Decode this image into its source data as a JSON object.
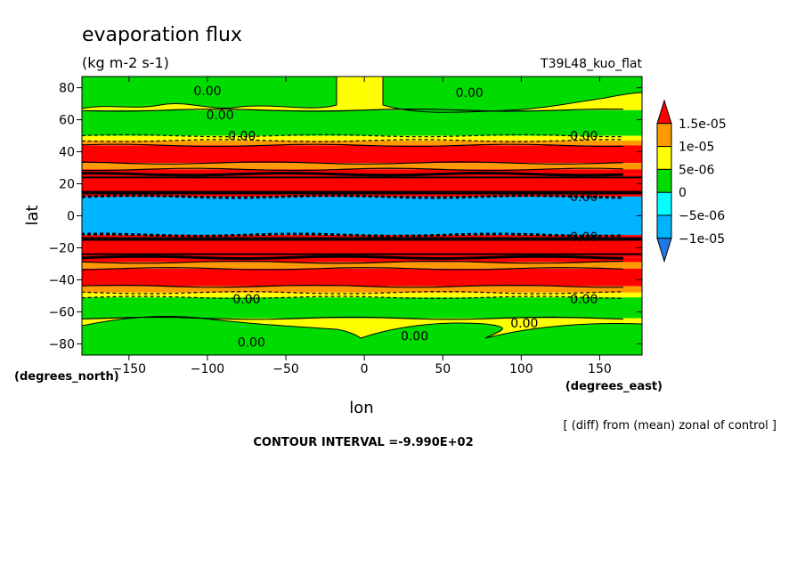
{
  "chart_data": {
    "type": "heatmap",
    "title": "evaporation flux",
    "subtitle": "(kg m-2 s-1)",
    "experiment": "T39L48_kuo_flat",
    "xlabel": "lon",
    "ylabel": "lat",
    "xunits": "(degrees_east)",
    "yunits": "(degrees_north)",
    "xlim": [
      -180,
      177
    ],
    "ylim": [
      -87,
      87
    ],
    "xticks": [
      -150,
      -100,
      -50,
      0,
      50,
      100,
      150
    ],
    "xtick_labels": [
      "−150",
      "−100",
      "−50",
      "0",
      "50",
      "100",
      "150"
    ],
    "yticks": [
      -80,
      -60,
      -40,
      -20,
      0,
      20,
      40,
      60,
      80
    ],
    "ytick_labels": [
      "−80",
      "−60",
      "−40",
      "−20",
      "0",
      "20",
      "40",
      "60",
      "80"
    ],
    "note": "[ (diff) from (mean) zonal of control ]",
    "contour_interval": "CONTOUR INTERVAL =-9.990E+02",
    "colorbar": {
      "labels": [
        "1.5e-05",
        "1e-05",
        "5e-06",
        "0",
        "−5e-06",
        "−1e-05"
      ],
      "levels": [
        -1.5e-05,
        -1e-05,
        -5e-06,
        0,
        5e-06,
        1e-05,
        1.5e-05
      ],
      "colors": [
        "#1e78e6",
        "#00b4ff",
        "#00ffff",
        "#00dc00",
        "#ffff00",
        "#ff9b00",
        "#ff0000"
      ]
    },
    "bands": [
      {
        "lat_min": 66,
        "lat_max": 87,
        "value": 0
      },
      {
        "lat_min": 50,
        "lat_max": 66,
        "value": -2e-06
      },
      {
        "lat_min": 47,
        "lat_max": 50,
        "value": 2e-06
      },
      {
        "lat_min": 44,
        "lat_max": 47,
        "value": 7e-06
      },
      {
        "lat_min": 33,
        "lat_max": 44,
        "value": 1.2e-05
      },
      {
        "lat_min": 29,
        "lat_max": 33,
        "value": 7e-06
      },
      {
        "lat_min": 26,
        "lat_max": 29,
        "value": 1.2e-05
      },
      {
        "lat_min": 12,
        "lat_max": 26,
        "value": 1.6e-05
      },
      {
        "lat_min": -12,
        "lat_max": 12,
        "value": -1.2e-05
      },
      {
        "lat_min": -26,
        "lat_max": -12,
        "value": 1.6e-05
      },
      {
        "lat_min": -29,
        "lat_max": -26,
        "value": 1.2e-05
      },
      {
        "lat_min": -33,
        "lat_max": -29,
        "value": 7e-06
      },
      {
        "lat_min": -44,
        "lat_max": -33,
        "value": 1.2e-05
      },
      {
        "lat_min": -48,
        "lat_max": -44,
        "value": 7e-06
      },
      {
        "lat_min": -51,
        "lat_max": -48,
        "value": 2e-06
      },
      {
        "lat_min": -64,
        "lat_max": -51,
        "value": -2e-06
      },
      {
        "lat_min": -87,
        "lat_max": -64,
        "value": 0
      }
    ],
    "contour_labels": [
      {
        "text": "0.00",
        "lon": -100,
        "lat": 78
      },
      {
        "text": "0.00",
        "lon": 67,
        "lat": 77
      },
      {
        "text": "0.00",
        "lon": -92,
        "lat": 63
      },
      {
        "text": "0.00",
        "lon": -78,
        "lat": 50
      },
      {
        "text": "0.00",
        "lon": 140,
        "lat": 50
      },
      {
        "text": "0.00",
        "lon": 140,
        "lat": 12
      },
      {
        "text": "0.00",
        "lon": 140,
        "lat": -13
      },
      {
        "text": "0.00",
        "lon": 140,
        "lat": -52
      },
      {
        "text": "0.00",
        "lon": 102,
        "lat": -67
      },
      {
        "text": "0.00",
        "lon": 32,
        "lat": -75
      },
      {
        "text": "0.00",
        "lon": -72,
        "lat": -79
      },
      {
        "text": "0.00",
        "lon": -75,
        "lat": -52
      }
    ]
  }
}
